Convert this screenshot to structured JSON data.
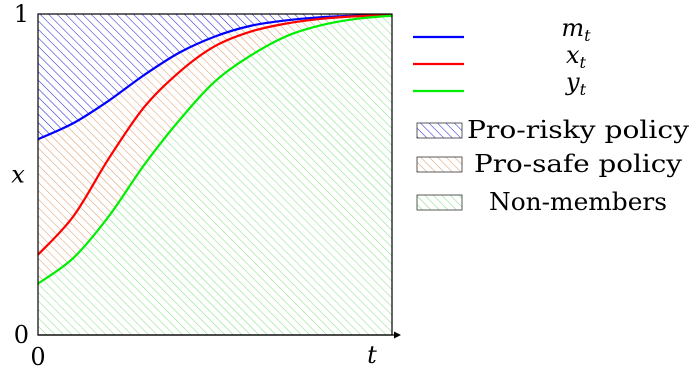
{
  "chart_data": {
    "type": "area",
    "title": "",
    "xlabel": "t",
    "ylabel": "x",
    "xlim": [
      0,
      1
    ],
    "ylim": [
      0,
      1
    ],
    "x_ticks": [
      {
        "value": 0,
        "label": "0"
      }
    ],
    "y_ticks": [
      {
        "value": 0,
        "label": "0"
      },
      {
        "value": 1,
        "label": "1"
      }
    ],
    "x": [
      0,
      0.1,
      0.2,
      0.3,
      0.4,
      0.5,
      0.6,
      0.7,
      0.8,
      0.9,
      1.0
    ],
    "series": [
      {
        "name": "m_t",
        "color": "#0000ff",
        "values": [
          0.61,
          0.66,
          0.73,
          0.81,
          0.88,
          0.93,
          0.963,
          0.98,
          0.99,
          0.995,
          0.998
        ]
      },
      {
        "name": "x_t",
        "color": "#ff0000",
        "values": [
          0.25,
          0.37,
          0.55,
          0.71,
          0.82,
          0.9,
          0.945,
          0.97,
          0.985,
          0.993,
          0.997
        ]
      },
      {
        "name": "y_t",
        "color": "#00ee00",
        "values": [
          0.16,
          0.24,
          0.37,
          0.53,
          0.67,
          0.79,
          0.87,
          0.93,
          0.965,
          0.985,
          0.995
        ]
      }
    ],
    "regions": [
      {
        "name": "Pro-risky policy",
        "between": [
          "m_t",
          "top"
        ],
        "color": "#0000cc",
        "hatch": "diagonal-down"
      },
      {
        "name": "Pro-safe policy",
        "between": [
          "y_t",
          "m_t"
        ],
        "color": "#cc5500",
        "hatch": "diagonal-down"
      },
      {
        "name": "Non-members",
        "between": [
          "bottom",
          "y_t"
        ],
        "color": "#33cc33",
        "hatch": "diagonal-down"
      }
    ],
    "legend_position": "right"
  }
}
